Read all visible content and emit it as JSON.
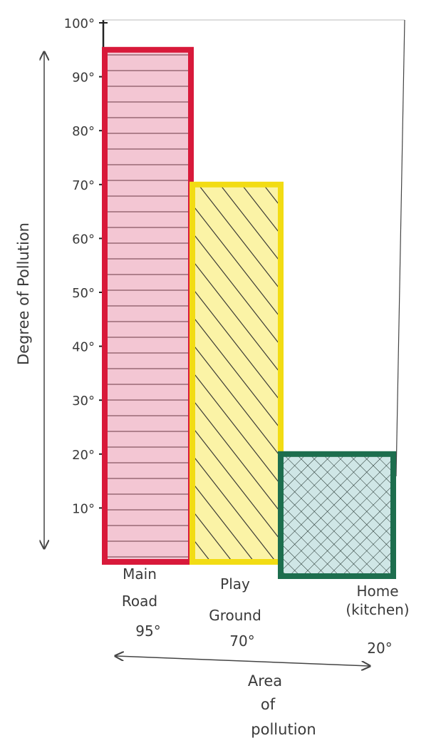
{
  "chart_data": {
    "type": "bar",
    "title": "",
    "ylabel": "Degree of Pollution",
    "xlabel": "Area of pollution",
    "ylim": [
      0,
      100
    ],
    "yticks": [
      {
        "value": 10,
        "label": "10°"
      },
      {
        "value": 20,
        "label": "20°"
      },
      {
        "value": 30,
        "label": "30°"
      },
      {
        "value": 40,
        "label": "40°"
      },
      {
        "value": 50,
        "label": "50°"
      },
      {
        "value": 60,
        "label": "60°"
      },
      {
        "value": 70,
        "label": "70°"
      },
      {
        "value": 80,
        "label": "80°"
      },
      {
        "value": 90,
        "label": "90°"
      },
      {
        "value": 100,
        "label": "100°"
      }
    ],
    "categories": [
      "Main Road",
      "Play Ground",
      "Home (kitchen)"
    ],
    "category_lines": [
      [
        "Main",
        "Road"
      ],
      [
        "Play",
        "Ground"
      ],
      [
        "Home",
        "(kitchen)"
      ]
    ],
    "values": [
      95,
      70,
      20
    ],
    "value_labels": [
      "95°",
      "70°",
      "20°"
    ],
    "colors": {
      "main_road": {
        "fill": "#f3c6d3",
        "stroke": "#d8193a",
        "pattern": "horizontal"
      },
      "play_ground": {
        "fill": "#fbf3a6",
        "stroke": "#f2dc14",
        "pattern": "diagonal"
      },
      "home_kitchen": {
        "fill": "#cfe6e6",
        "stroke": "#1d6e4e",
        "pattern": "crosshatch"
      }
    }
  }
}
